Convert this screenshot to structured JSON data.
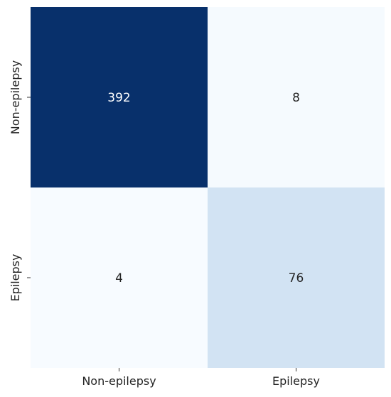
{
  "chart_data": {
    "type": "heatmap",
    "title": "",
    "xlabel": "",
    "ylabel": "",
    "x_categories": [
      "Non-epilepsy",
      "Epilepsy"
    ],
    "y_categories": [
      "Non-epilepsy",
      "Epilepsy"
    ],
    "values": [
      [
        392,
        8
      ],
      [
        4,
        76
      ]
    ],
    "colormap": "Blues",
    "colors": {
      "low": "#f7fbff",
      "high": "#08306b",
      "dark_text": "#262626",
      "light_text": "#ffffff"
    },
    "colorbar": false,
    "grid": false,
    "legend": "none"
  }
}
